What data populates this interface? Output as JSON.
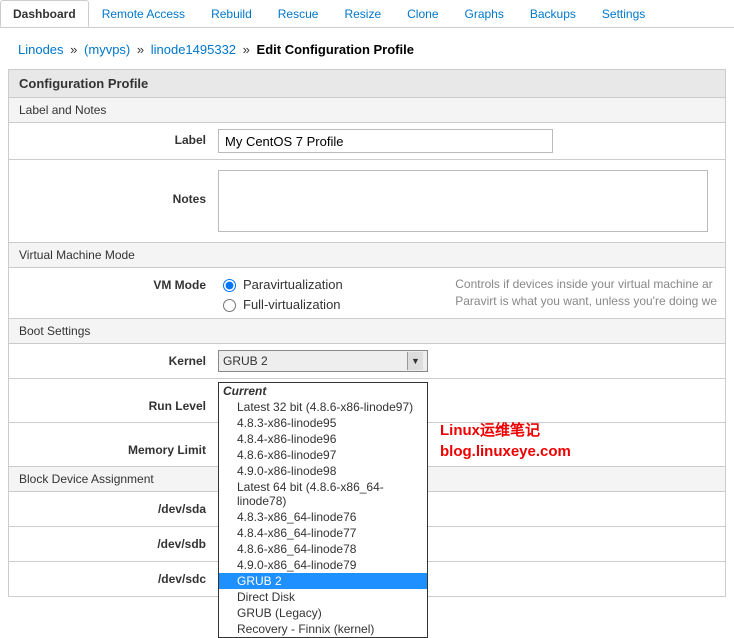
{
  "tabs": {
    "items": [
      "Dashboard",
      "Remote Access",
      "Rebuild",
      "Rescue",
      "Resize",
      "Clone",
      "Graphs",
      "Backups",
      "Settings"
    ],
    "active": 0
  },
  "breadcrumb": {
    "a": "Linodes",
    "b": "(myvps)",
    "c": "linode1495332",
    "cur": "Edit Configuration Profile"
  },
  "sections": {
    "profile_hdr": "Configuration Profile",
    "label_notes": "Label and Notes",
    "label_lbl": "Label",
    "label_val": "My CentOS 7 Profile",
    "notes_lbl": "Notes",
    "notes_val": "",
    "vmmode_hdr": "Virtual Machine Mode",
    "vmmode_lbl": "VM Mode",
    "vm_para": "Paravirtualization",
    "vm_full": "Full-virtualization",
    "vm_hint1": "Controls if devices inside your virtual machine ar",
    "vm_hint2": "Paravirt is what you want, unless you're doing we",
    "boot_hdr": "Boot Settings",
    "kernel_lbl": "Kernel",
    "kernel_val": "GRUB 2",
    "runlevel_lbl": "Run Level",
    "memlimit_lbl": "Memory Limit",
    "bda_hdr": "Block Device Assignment",
    "sda": "/dev/sda",
    "sdb": "/dev/sdb",
    "sdc": "/dev/sdc"
  },
  "dropdown": {
    "grp": "Current",
    "opts": [
      "Latest 32 bit (4.8.6-x86-linode97)",
      "4.8.3-x86-linode95",
      "4.8.4-x86-linode96",
      "4.8.6-x86-linode97",
      "4.9.0-x86-linode98",
      "Latest 64 bit (4.8.6-x86_64-linode78)",
      "4.8.3-x86_64-linode76",
      "4.8.4-x86_64-linode77",
      "4.8.6-x86_64-linode78",
      "4.9.0-x86_64-linode79",
      "GRUB 2",
      "Direct Disk",
      "GRUB (Legacy)",
      "Recovery - Finnix (kernel)"
    ],
    "selected": 10
  },
  "watermark": {
    "line1": "Linux运维笔记",
    "line2": "blog.linuxeye.com"
  }
}
